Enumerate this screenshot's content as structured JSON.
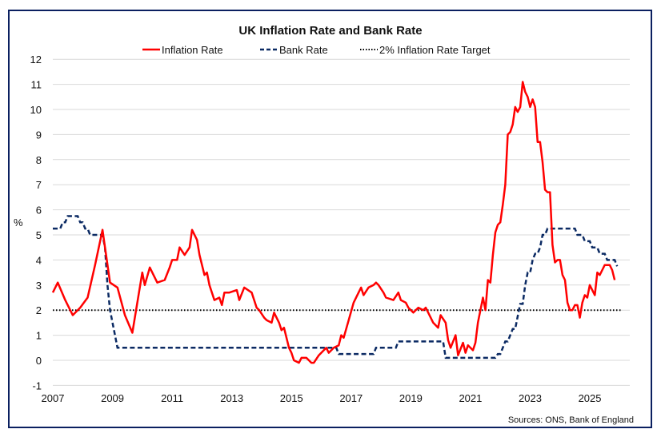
{
  "chart_data": {
    "type": "line",
    "title": "UK Inflation Rate and Bank Rate",
    "ylabel": "%",
    "xlabel": "",
    "ylim": [
      -1,
      12
    ],
    "xlim": [
      2007,
      2026
    ],
    "yticks": [
      "-1",
      "0",
      "1",
      "2",
      "3",
      "4",
      "5",
      "6",
      "7",
      "8",
      "9",
      "10",
      "11",
      "12"
    ],
    "xticks": [
      "2007",
      "2009",
      "2011",
      "2013",
      "2015",
      "2017",
      "2019",
      "2021",
      "2023",
      "2025"
    ],
    "grid": true,
    "legend_position": "top",
    "source": "Sources: ONS, Bank of England",
    "colors": {
      "inflation": "#ff0000",
      "bank": "#0b2a63",
      "target": "#000000",
      "frame": "#0b2060",
      "grid": "#d9d9d9"
    },
    "series": [
      {
        "name": "Inflation Rate",
        "style": "solid",
        "points": [
          [
            "2007-01",
            2.7
          ],
          [
            "2007-03",
            3.1
          ],
          [
            "2007-06",
            2.4
          ],
          [
            "2007-09",
            1.8
          ],
          [
            "2007-12",
            2.1
          ],
          [
            "2008-03",
            2.5
          ],
          [
            "2008-06",
            3.8
          ],
          [
            "2008-09",
            5.2
          ],
          [
            "2008-10",
            4.5
          ],
          [
            "2008-12",
            3.1
          ],
          [
            "2009-03",
            2.9
          ],
          [
            "2009-06",
            1.8
          ],
          [
            "2009-09",
            1.1
          ],
          [
            "2009-12",
            2.9
          ],
          [
            "2010-01",
            3.5
          ],
          [
            "2010-02",
            3.0
          ],
          [
            "2010-04",
            3.7
          ],
          [
            "2010-07",
            3.1
          ],
          [
            "2010-10",
            3.2
          ],
          [
            "2010-12",
            3.7
          ],
          [
            "2011-01",
            4.0
          ],
          [
            "2011-03",
            4.0
          ],
          [
            "2011-04",
            4.5
          ],
          [
            "2011-06",
            4.2
          ],
          [
            "2011-08",
            4.5
          ],
          [
            "2011-09",
            5.2
          ],
          [
            "2011-11",
            4.8
          ],
          [
            "2011-12",
            4.2
          ],
          [
            "2012-02",
            3.4
          ],
          [
            "2012-03",
            3.5
          ],
          [
            "2012-04",
            3.0
          ],
          [
            "2012-06",
            2.4
          ],
          [
            "2012-08",
            2.5
          ],
          [
            "2012-09",
            2.2
          ],
          [
            "2012-10",
            2.7
          ],
          [
            "2012-12",
            2.7
          ],
          [
            "2013-03",
            2.8
          ],
          [
            "2013-04",
            2.4
          ],
          [
            "2013-06",
            2.9
          ],
          [
            "2013-09",
            2.7
          ],
          [
            "2013-11",
            2.1
          ],
          [
            "2013-12",
            2.0
          ],
          [
            "2014-02",
            1.7
          ],
          [
            "2014-03",
            1.6
          ],
          [
            "2014-05",
            1.5
          ],
          [
            "2014-06",
            1.9
          ],
          [
            "2014-08",
            1.5
          ],
          [
            "2014-09",
            1.2
          ],
          [
            "2014-10",
            1.3
          ],
          [
            "2014-12",
            0.5
          ],
          [
            "2015-01",
            0.3
          ],
          [
            "2015-02",
            0.0
          ],
          [
            "2015-04",
            -0.1
          ],
          [
            "2015-05",
            0.1
          ],
          [
            "2015-07",
            0.1
          ],
          [
            "2015-09",
            -0.1
          ],
          [
            "2015-10",
            -0.1
          ],
          [
            "2015-12",
            0.2
          ],
          [
            "2016-03",
            0.5
          ],
          [
            "2016-04",
            0.3
          ],
          [
            "2016-06",
            0.5
          ],
          [
            "2016-08",
            0.6
          ],
          [
            "2016-09",
            1.0
          ],
          [
            "2016-10",
            0.9
          ],
          [
            "2016-12",
            1.6
          ],
          [
            "2017-02",
            2.3
          ],
          [
            "2017-04",
            2.7
          ],
          [
            "2017-05",
            2.9
          ],
          [
            "2017-06",
            2.6
          ],
          [
            "2017-08",
            2.9
          ],
          [
            "2017-10",
            3.0
          ],
          [
            "2017-11",
            3.1
          ],
          [
            "2017-12",
            3.0
          ],
          [
            "2018-02",
            2.7
          ],
          [
            "2018-03",
            2.5
          ],
          [
            "2018-06",
            2.4
          ],
          [
            "2018-08",
            2.7
          ],
          [
            "2018-09",
            2.4
          ],
          [
            "2018-11",
            2.3
          ],
          [
            "2018-12",
            2.1
          ],
          [
            "2019-02",
            1.9
          ],
          [
            "2019-04",
            2.1
          ],
          [
            "2019-06",
            2.0
          ],
          [
            "2019-07",
            2.1
          ],
          [
            "2019-09",
            1.7
          ],
          [
            "2019-10",
            1.5
          ],
          [
            "2019-12",
            1.3
          ],
          [
            "2020-01",
            1.8
          ],
          [
            "2020-03",
            1.5
          ],
          [
            "2020-04",
            0.8
          ],
          [
            "2020-05",
            0.5
          ],
          [
            "2020-07",
            1.0
          ],
          [
            "2020-08",
            0.2
          ],
          [
            "2020-10",
            0.7
          ],
          [
            "2020-11",
            0.3
          ],
          [
            "2020-12",
            0.6
          ],
          [
            "2021-02",
            0.4
          ],
          [
            "2021-03",
            0.7
          ],
          [
            "2021-04",
            1.5
          ],
          [
            "2021-06",
            2.5
          ],
          [
            "2021-07",
            2.0
          ],
          [
            "2021-08",
            3.2
          ],
          [
            "2021-09",
            3.1
          ],
          [
            "2021-10",
            4.2
          ],
          [
            "2021-11",
            5.1
          ],
          [
            "2021-12",
            5.4
          ],
          [
            "2022-01",
            5.5
          ],
          [
            "2022-02",
            6.2
          ],
          [
            "2022-03",
            7.0
          ],
          [
            "2022-04",
            9.0
          ],
          [
            "2022-05",
            9.1
          ],
          [
            "2022-06",
            9.4
          ],
          [
            "2022-07",
            10.1
          ],
          [
            "2022-08",
            9.9
          ],
          [
            "2022-09",
            10.1
          ],
          [
            "2022-10",
            11.1
          ],
          [
            "2022-11",
            10.7
          ],
          [
            "2022-12",
            10.5
          ],
          [
            "2023-01",
            10.1
          ],
          [
            "2023-02",
            10.4
          ],
          [
            "2023-03",
            10.1
          ],
          [
            "2023-04",
            8.7
          ],
          [
            "2023-05",
            8.7
          ],
          [
            "2023-06",
            7.9
          ],
          [
            "2023-07",
            6.8
          ],
          [
            "2023-08",
            6.7
          ],
          [
            "2023-09",
            6.7
          ],
          [
            "2023-10",
            4.6
          ],
          [
            "2023-11",
            3.9
          ],
          [
            "2023-12",
            4.0
          ],
          [
            "2024-01",
            4.0
          ],
          [
            "2024-02",
            3.4
          ],
          [
            "2024-03",
            3.2
          ],
          [
            "2024-04",
            2.3
          ],
          [
            "2024-05",
            2.0
          ],
          [
            "2024-06",
            2.0
          ],
          [
            "2024-07",
            2.2
          ],
          [
            "2024-08",
            2.2
          ],
          [
            "2024-09",
            1.7
          ],
          [
            "2024-10",
            2.3
          ],
          [
            "2024-11",
            2.6
          ],
          [
            "2024-12",
            2.5
          ],
          [
            "2025-01",
            3.0
          ],
          [
            "2025-02",
            2.8
          ],
          [
            "2025-03",
            2.6
          ],
          [
            "2025-04",
            3.5
          ],
          [
            "2025-05",
            3.4
          ],
          [
            "2025-06",
            3.6
          ],
          [
            "2025-07",
            3.8
          ],
          [
            "2025-08",
            3.8
          ],
          [
            "2025-09",
            3.8
          ],
          [
            "2025-10",
            3.6
          ],
          [
            "2025-11",
            3.2
          ]
        ]
      },
      {
        "name": "Bank Rate",
        "style": "dashed",
        "steps": [
          [
            "2007-01",
            5.25
          ],
          [
            "2007-05",
            5.5
          ],
          [
            "2007-07",
            5.75
          ],
          [
            "2007-12",
            5.5
          ],
          [
            "2008-02",
            5.25
          ],
          [
            "2008-04",
            5.0
          ],
          [
            "2008-10",
            4.5
          ],
          [
            "2008-11",
            3.0
          ],
          [
            "2008-12",
            2.0
          ],
          [
            "2009-01",
            1.5
          ],
          [
            "2009-02",
            1.0
          ],
          [
            "2009-03",
            0.5
          ],
          [
            "2016-08",
            0.25
          ],
          [
            "2017-11",
            0.5
          ],
          [
            "2018-08",
            0.75
          ],
          [
            "2020-03",
            0.1
          ],
          [
            "2021-12",
            0.25
          ],
          [
            "2022-02",
            0.5
          ],
          [
            "2022-03",
            0.75
          ],
          [
            "2022-05",
            1.0
          ],
          [
            "2022-06",
            1.25
          ],
          [
            "2022-08",
            1.75
          ],
          [
            "2022-09",
            2.25
          ],
          [
            "2022-11",
            3.0
          ],
          [
            "2022-12",
            3.5
          ],
          [
            "2023-02",
            4.0
          ],
          [
            "2023-03",
            4.25
          ],
          [
            "2023-05",
            4.5
          ],
          [
            "2023-06",
            5.0
          ],
          [
            "2023-08",
            5.25
          ],
          [
            "2024-08",
            5.0
          ],
          [
            "2024-11",
            4.75
          ],
          [
            "2025-02",
            4.5
          ],
          [
            "2025-05",
            4.25
          ],
          [
            "2025-08",
            4.0
          ],
          [
            "2025-12",
            3.75
          ]
        ]
      },
      {
        "name": "2% Inflation Rate Target",
        "style": "dotted",
        "value": 2
      }
    ]
  }
}
